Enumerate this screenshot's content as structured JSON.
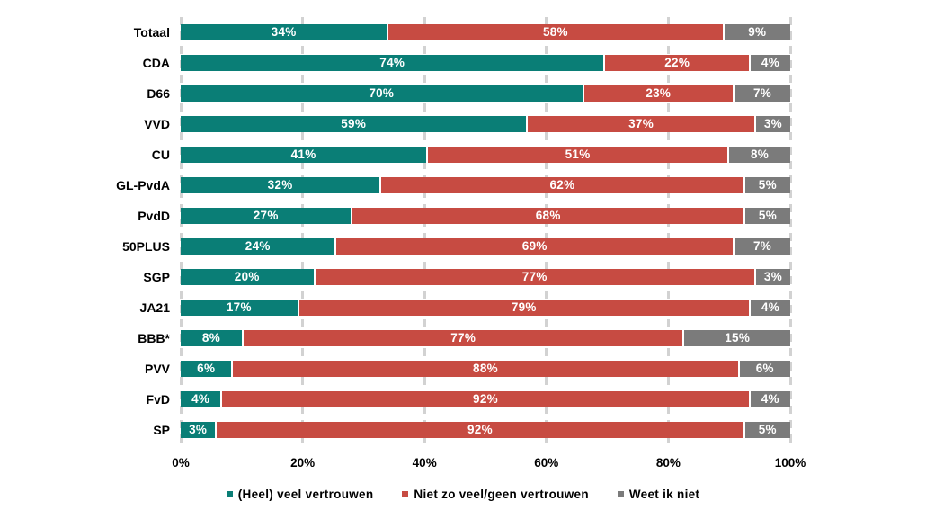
{
  "chart_data": {
    "type": "bar",
    "orientation": "horizontal",
    "stacked": true,
    "title": "",
    "xlabel": "",
    "ylabel": "",
    "categories": [
      "Totaal",
      "CDA",
      "D66",
      "VVD",
      "CU",
      "GL-PvdA",
      "PvdD",
      "50PLUS",
      "SGP",
      "JA21",
      "BBB*",
      "PVV",
      "FvD",
      "SP"
    ],
    "series": [
      {
        "name": "(Heel) veel vertrouwen",
        "color": "#0a7e76",
        "values": [
          34,
          74,
          70,
          59,
          41,
          32,
          27,
          24,
          20,
          17,
          8,
          6,
          4,
          3
        ]
      },
      {
        "name": "Niet zo veel/geen vertrouwen",
        "color": "#c74b42",
        "values": [
          58,
          22,
          23,
          37,
          51,
          62,
          68,
          69,
          77,
          79,
          77,
          88,
          92,
          92
        ]
      },
      {
        "name": "Weet ik niet",
        "color": "#7b7b7b",
        "values": [
          9,
          4,
          7,
          3,
          8,
          5,
          5,
          7,
          3,
          4,
          15,
          6,
          4,
          5
        ]
      }
    ],
    "x_ticks": [
      "0%",
      "20%",
      "40%",
      "60%",
      "80%",
      "100%"
    ],
    "xlim": [
      0,
      100
    ],
    "grid": "dashed-vertical",
    "legend_position": "bottom",
    "value_label_suffix": "%",
    "value_label_color": "#ffffff",
    "gridline_color": "#d2d2d2"
  }
}
